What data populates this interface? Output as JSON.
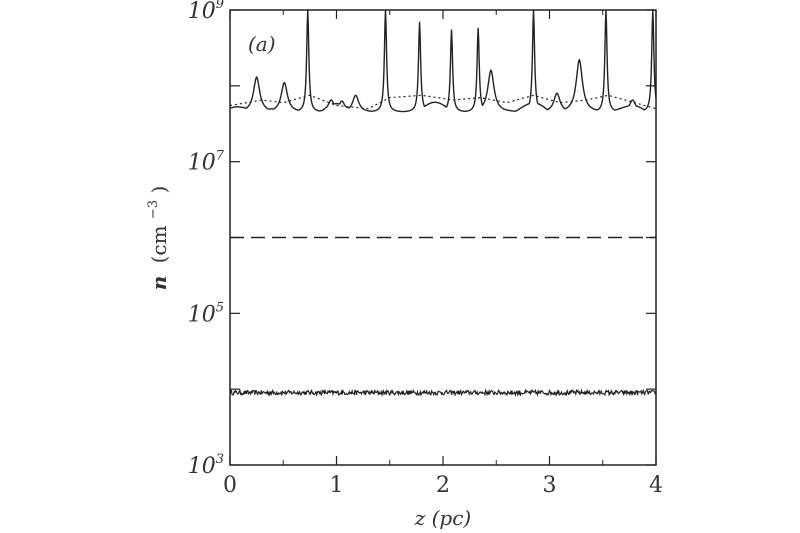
{
  "chart_data": {
    "type": "line",
    "panel_label": "(a)",
    "xlabel": "z  (pc)",
    "ylabel": {
      "symbol": "n",
      "unit": "(cm",
      "exponent": "−3",
      "close": ")"
    },
    "xlim": [
      0,
      4
    ],
    "ylim": [
      1000,
      1000000000
    ],
    "yscale": "log",
    "x_ticks": [
      {
        "value": 0,
        "label": "0"
      },
      {
        "value": 1,
        "label": "1"
      },
      {
        "value": 2,
        "label": "2"
      },
      {
        "value": 3,
        "label": "3"
      },
      {
        "value": 4,
        "label": "4"
      }
    ],
    "y_ticks": [
      {
        "value": 1000,
        "base": "10",
        "exp": "3"
      },
      {
        "value": 100000,
        "base": "10",
        "exp": "5"
      },
      {
        "value": 10000000,
        "base": "10",
        "exp": "7"
      },
      {
        "value": 1000000000,
        "base": "10",
        "exp": "9"
      }
    ],
    "series": [
      {
        "style": "solid",
        "baseline": 45000000,
        "peaks": [
          {
            "x": 0.25,
            "y": 130000000
          },
          {
            "x": 0.51,
            "y": 110000000
          },
          {
            "x": 0.73,
            "y": 1000000000
          },
          {
            "x": 0.95,
            "y": 65000000
          },
          {
            "x": 1.05,
            "y": 63000000
          },
          {
            "x": 1.18,
            "y": 75000000
          },
          {
            "x": 1.46,
            "y": 1000000000
          },
          {
            "x": 1.78,
            "y": 700000000
          },
          {
            "x": 2.08,
            "y": 550000000
          },
          {
            "x": 2.33,
            "y": 580000000
          },
          {
            "x": 2.45,
            "y": 160000000
          },
          {
            "x": 2.85,
            "y": 1000000000
          },
          {
            "x": 3.07,
            "y": 80000000
          },
          {
            "x": 3.28,
            "y": 220000000
          },
          {
            "x": 3.53,
            "y": 1000000000
          },
          {
            "x": 3.78,
            "y": 65000000
          },
          {
            "x": 3.97,
            "y": 1000000000
          }
        ]
      },
      {
        "style": "dotted",
        "points": [
          {
            "x": 0.0,
            "y": 55000000
          },
          {
            "x": 0.3,
            "y": 65000000
          },
          {
            "x": 0.5,
            "y": 60000000
          },
          {
            "x": 0.75,
            "y": 75000000
          },
          {
            "x": 1.0,
            "y": 55000000
          },
          {
            "x": 1.3,
            "y": 50000000
          },
          {
            "x": 1.5,
            "y": 70000000
          },
          {
            "x": 1.8,
            "y": 75000000
          },
          {
            "x": 2.1,
            "y": 65000000
          },
          {
            "x": 2.35,
            "y": 70000000
          },
          {
            "x": 2.6,
            "y": 60000000
          },
          {
            "x": 2.85,
            "y": 75000000
          },
          {
            "x": 3.1,
            "y": 60000000
          },
          {
            "x": 3.35,
            "y": 65000000
          },
          {
            "x": 3.55,
            "y": 75000000
          },
          {
            "x": 3.8,
            "y": 60000000
          },
          {
            "x": 4.0,
            "y": 50000000
          }
        ]
      },
      {
        "style": "dashed",
        "points": [
          {
            "x": 0,
            "y": 1000000
          },
          {
            "x": 4,
            "y": 1000000
          }
        ]
      },
      {
        "style": "noisy",
        "level": 9000,
        "noise": 0.06
      }
    ]
  }
}
